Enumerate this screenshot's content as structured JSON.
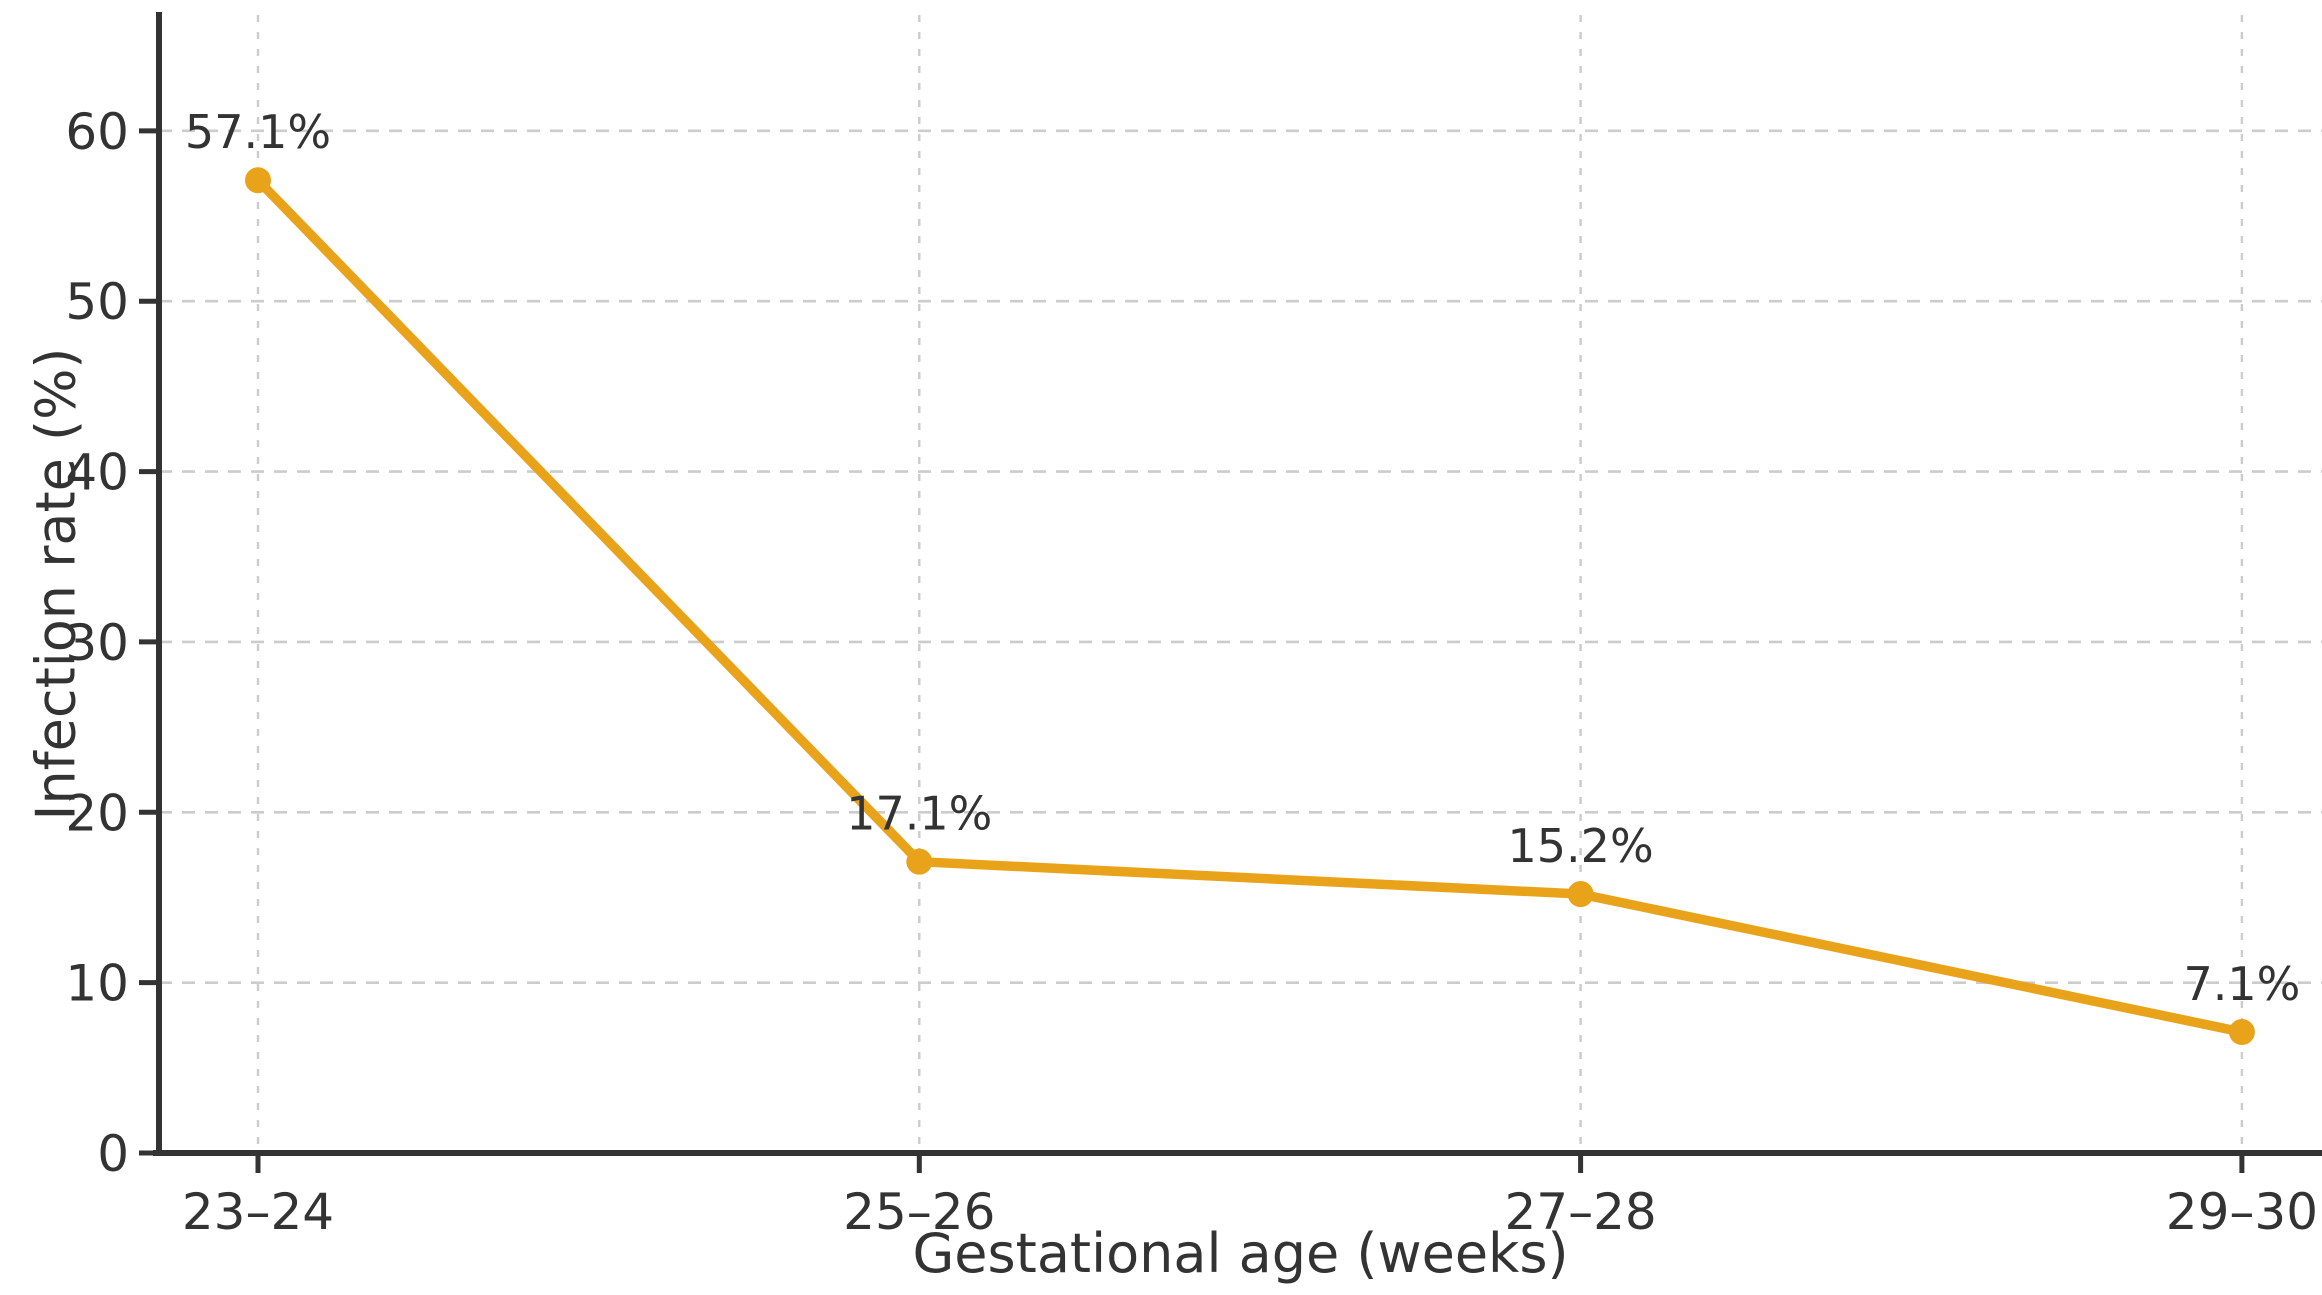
{
  "chart_data": {
    "type": "line",
    "title": "",
    "xlabel": "Gestational age (weeks)",
    "ylabel": "Infection rate (%)",
    "categories": [
      "23–24",
      "25–26",
      "27–28",
      "29–30"
    ],
    "series": [
      {
        "name": "Infection rate",
        "values": [
          57.1,
          17.1,
          15.2,
          7.1
        ]
      }
    ],
    "point_labels": [
      "57.1%",
      "17.1%",
      "15.2%",
      "7.1%"
    ],
    "yticks": [
      0,
      10,
      20,
      30,
      40,
      50,
      60
    ],
    "ylim": [
      0,
      66.8
    ],
    "grid": "both-dashed",
    "legend_position": "none",
    "line_color": "#E9A31B",
    "marker_color": "#E9A31B",
    "axis_color": "#333333",
    "tick_label_color": "#333333",
    "data_label_color": "#333333",
    "grid_color": "#cccccc",
    "background_color": "#ffffff"
  }
}
